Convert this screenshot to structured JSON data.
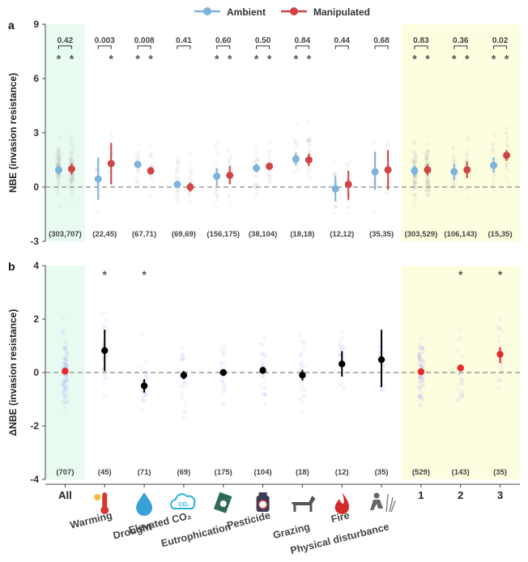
{
  "legend": {
    "ambient_label": "Ambient",
    "manipulated_label": "Manipulated",
    "ambient_color": "#7eb3dc",
    "manipulated_color": "#cf4445"
  },
  "categories": [
    "All",
    "Warming",
    "Drought",
    "Elevated CO₂",
    "Eutrophication",
    "Pesticide",
    "Grazing",
    "Fire",
    "Physical disturbance",
    "1",
    "2",
    "3"
  ],
  "category_icons": [
    "none",
    "thermometer-icon",
    "water-drop-icon",
    "co2-cloud-icon",
    "fertilizer-icon",
    "pesticide-bottle-icon",
    "goat-icon",
    "fire-icon",
    "gardener-icon",
    "none",
    "none",
    "none"
  ],
  "highlight_colors": {
    "all": "#e9fbf1",
    "levels": "#fdfde0"
  },
  "chart_data": [
    {
      "panel": "a",
      "type": "scatter",
      "ylabel": "NBE (invasion resistance)",
      "ylim": [
        -3,
        9
      ],
      "yticks": [
        -3,
        0,
        3,
        6,
        9
      ],
      "reference_line": 0,
      "p_values": [
        "0.42",
        "0.003",
        "0.008",
        "0.41",
        "0.60",
        "0.50",
        "0.84",
        "0.44",
        "0.68",
        "0.83",
        "0.36",
        "0.02"
      ],
      "sig_stars": [
        [
          true,
          true
        ],
        [
          false,
          true
        ],
        [
          true,
          true
        ],
        [
          false,
          false
        ],
        [
          true,
          true
        ],
        [
          true,
          true
        ],
        [
          true,
          true
        ],
        [
          false,
          false
        ],
        [
          false,
          false
        ],
        [
          true,
          true
        ],
        [
          true,
          true
        ],
        [
          true,
          true
        ]
      ],
      "sample_sizes": [
        "(303,707)",
        "(22,45)",
        "(67,71)",
        "(69,69)",
        "(156,175)",
        "(38,104)",
        "(18,18)",
        "(12,12)",
        "(35,35)",
        "(303,529)",
        "(106,143)",
        "(15,35)"
      ],
      "series": [
        {
          "name": "Ambient",
          "color": "#7eb3dc",
          "mean": [
            0.95,
            0.45,
            1.25,
            0.15,
            0.6,
            1.05,
            1.55,
            -0.1,
            0.85,
            0.9,
            0.85,
            1.2
          ],
          "lower": [
            0.7,
            -0.7,
            1.05,
            -0.05,
            0.05,
            0.8,
            1.2,
            -0.8,
            -0.15,
            0.6,
            0.4,
            0.8
          ],
          "upper": [
            1.2,
            1.65,
            1.45,
            0.35,
            1.05,
            1.3,
            1.9,
            0.6,
            1.95,
            1.2,
            1.3,
            1.65
          ]
        },
        {
          "name": "Manipulated",
          "color": "#cf4445",
          "mean": [
            1.0,
            1.3,
            0.9,
            0.0,
            0.65,
            1.15,
            1.5,
            0.15,
            0.95,
            0.95,
            0.95,
            1.75
          ],
          "lower": [
            0.7,
            0.15,
            0.7,
            -0.25,
            0.15,
            1.0,
            1.15,
            -0.7,
            -0.15,
            0.65,
            0.5,
            1.45
          ],
          "upper": [
            1.3,
            2.45,
            1.1,
            0.25,
            1.15,
            1.3,
            1.85,
            0.9,
            2.05,
            1.25,
            1.4,
            2.05
          ]
        }
      ]
    },
    {
      "panel": "b",
      "type": "scatter",
      "ylabel": "ΔNBE (invasion resistance)",
      "ylim": [
        -4,
        4
      ],
      "yticks": [
        -4,
        -2,
        0,
        2,
        4
      ],
      "reference_line": 0,
      "sig_stars": [
        false,
        true,
        true,
        false,
        false,
        false,
        false,
        false,
        false,
        false,
        true,
        true
      ],
      "sample_sizes": [
        "(707)",
        "(45)",
        "(71)",
        "(69)",
        "(175)",
        "(104)",
        "(18)",
        "(12)",
        "(35)",
        "(529)",
        "(143)",
        "(35)"
      ],
      "series": [
        {
          "name": "",
          "colors": [
            "#e8282a",
            "#000000",
            "#000000",
            "#000000",
            "#000000",
            "#000000",
            "#000000",
            "#000000",
            "#000000",
            "#e8282a",
            "#e8282a",
            "#e8282a"
          ],
          "mean": [
            0.05,
            0.82,
            -0.5,
            -0.1,
            0.0,
            0.08,
            -0.1,
            0.32,
            0.48,
            0.03,
            0.17,
            0.68
          ],
          "lower": [
            -0.05,
            0.05,
            -0.75,
            -0.25,
            -0.08,
            -0.05,
            -0.3,
            -0.15,
            -0.55,
            -0.1,
            0.05,
            0.35
          ],
          "upper": [
            0.15,
            1.6,
            -0.25,
            0.05,
            0.08,
            0.2,
            0.1,
            0.8,
            1.6,
            0.15,
            0.3,
            0.95
          ]
        }
      ]
    }
  ]
}
